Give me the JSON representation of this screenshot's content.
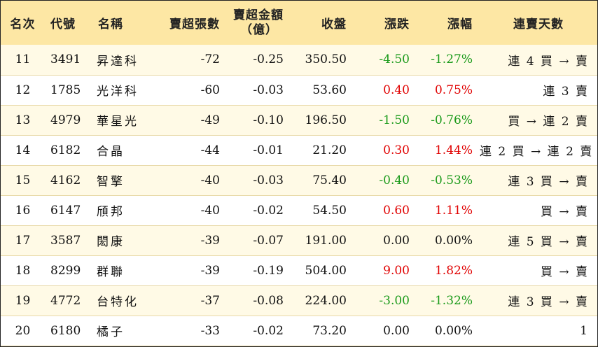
{
  "header": {
    "rank": "名次",
    "code": "代號",
    "name": "名稱",
    "net_sell_lots": "賣超張數",
    "net_sell_amount_line1": "賣超金額",
    "net_sell_amount_line2": "（億）",
    "close": "收盤",
    "change": "漲跌",
    "change_pct": "漲幅",
    "streak": "連賣天數"
  },
  "colors": {
    "header_bg": "#fde7a4",
    "row_alt_bg": "#fffae6",
    "up": "#e00000",
    "down": "#1a9a1a"
  },
  "rows": [
    {
      "rank": "11",
      "code": "3491",
      "name": "昇達科",
      "lots": "-72",
      "amount": "-0.25",
      "close": "350.50",
      "change": "-4.50",
      "pct": "-1.27%",
      "dir": "down",
      "streak": "連 4 買 → 賣"
    },
    {
      "rank": "12",
      "code": "1785",
      "name": "光洋科",
      "lots": "-60",
      "amount": "-0.03",
      "close": "53.60",
      "change": "0.40",
      "pct": "0.75%",
      "dir": "up",
      "streak": "連 3 賣"
    },
    {
      "rank": "13",
      "code": "4979",
      "name": "華星光",
      "lots": "-49",
      "amount": "-0.10",
      "close": "196.50",
      "change": "-1.50",
      "pct": "-0.76%",
      "dir": "down",
      "streak": "買 → 連 2 賣"
    },
    {
      "rank": "14",
      "code": "6182",
      "name": "合晶",
      "lots": "-44",
      "amount": "-0.01",
      "close": "21.20",
      "change": "0.30",
      "pct": "1.44%",
      "dir": "up",
      "streak": "連 2 買 → 連 2 賣"
    },
    {
      "rank": "15",
      "code": "4162",
      "name": "智擎",
      "lots": "-40",
      "amount": "-0.03",
      "close": "75.40",
      "change": "-0.40",
      "pct": "-0.53%",
      "dir": "down",
      "streak": "連 3 買 → 賣"
    },
    {
      "rank": "16",
      "code": "6147",
      "name": "頎邦",
      "lots": "-40",
      "amount": "-0.02",
      "close": "54.50",
      "change": "0.60",
      "pct": "1.11%",
      "dir": "up",
      "streak": "買 → 賣"
    },
    {
      "rank": "17",
      "code": "3587",
      "name": "閎康",
      "lots": "-39",
      "amount": "-0.07",
      "close": "191.00",
      "change": "0.00",
      "pct": "0.00%",
      "dir": "flat",
      "streak": "連 5 買 → 賣"
    },
    {
      "rank": "18",
      "code": "8299",
      "name": "群聯",
      "lots": "-39",
      "amount": "-0.19",
      "close": "504.00",
      "change": "9.00",
      "pct": "1.82%",
      "dir": "up",
      "streak": "買 → 賣"
    },
    {
      "rank": "19",
      "code": "4772",
      "name": "台特化",
      "lots": "-37",
      "amount": "-0.08",
      "close": "224.00",
      "change": "-3.00",
      "pct": "-1.32%",
      "dir": "down",
      "streak": "連 3 買 → 賣"
    },
    {
      "rank": "20",
      "code": "6180",
      "name": "橘子",
      "lots": "-33",
      "amount": "-0.02",
      "close": "73.20",
      "change": "0.00",
      "pct": "0.00%",
      "dir": "flat",
      "streak": "1"
    }
  ]
}
